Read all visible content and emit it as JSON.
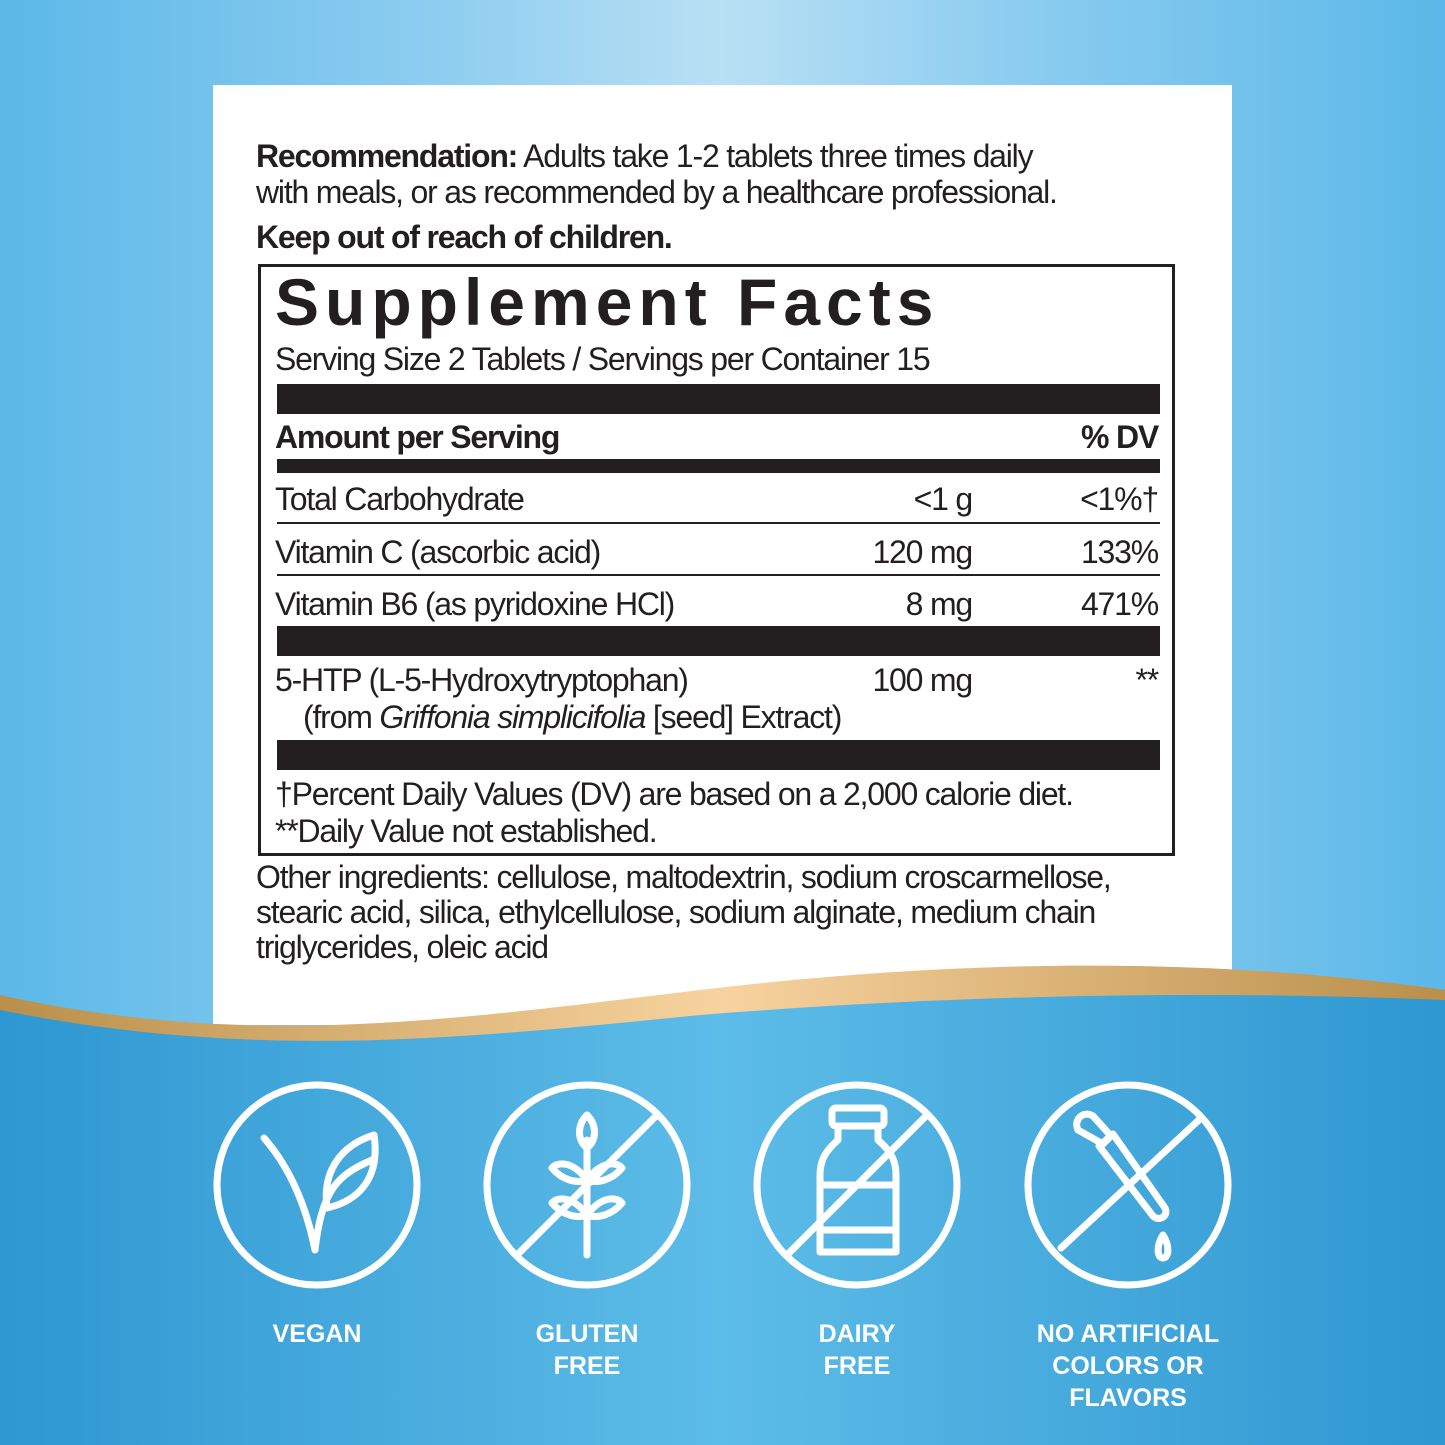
{
  "recommendation": {
    "label": "Recommendation:",
    "text1": " Adults take 1-2 tablets three times daily",
    "text2": "with meals, or as recommended by a healthcare professional.",
    "warning": "Keep out of reach of children."
  },
  "facts": {
    "title": "Supplement Facts",
    "serving": "Serving Size 2 Tablets / Servings per Container 15",
    "amount_header": "Amount per Serving",
    "dv_header": "% DV",
    "rows": [
      {
        "name": "Total Carbohydrate",
        "amount": "<1 g",
        "dv": "<1%†"
      },
      {
        "name": "Vitamin C (ascorbic acid)",
        "amount": "120 mg",
        "dv": "133%"
      },
      {
        "name": "Vitamin B6 (as pyridoxine HCl)",
        "amount": "8 mg",
        "dv": "471%"
      },
      {
        "name": "5-HTP (L-5-Hydroxytryptophan)",
        "amount": "100 mg",
        "dv": "**",
        "source_pre": "(from ",
        "source_italic": "Griffonia simplicifolia",
        "source_post": " [seed] Extract)"
      }
    ],
    "footnote1": "†Percent Daily Values (DV) are based on a 2,000 calorie diet.",
    "footnote2": "**Daily Value not established."
  },
  "other_ingredients": [
    "Other ingredients: cellulose, maltodextrin, sodium croscarmellose,",
    "stearic acid, silica, ethylcellulose, sodium alginate, medium chain",
    "triglycerides, oleic acid"
  ],
  "badges": [
    {
      "icon": "vegan-leaf-icon",
      "line1": "VEGAN",
      "line2": "",
      "line3": ""
    },
    {
      "icon": "gluten-free-wheat-icon",
      "line1": "GLUTEN",
      "line2": "FREE",
      "line3": ""
    },
    {
      "icon": "dairy-free-bottle-icon",
      "line1": "DAIRY",
      "line2": "FREE",
      "line3": ""
    },
    {
      "icon": "no-artificial-dropper-icon",
      "line1": "NO ARTIFICIAL",
      "line2": "COLORS OR",
      "line3": "FLAVORS"
    }
  ],
  "colors": {
    "blue": "#3aa3da",
    "gold": "#e9c48c",
    "text": "#231f20"
  }
}
